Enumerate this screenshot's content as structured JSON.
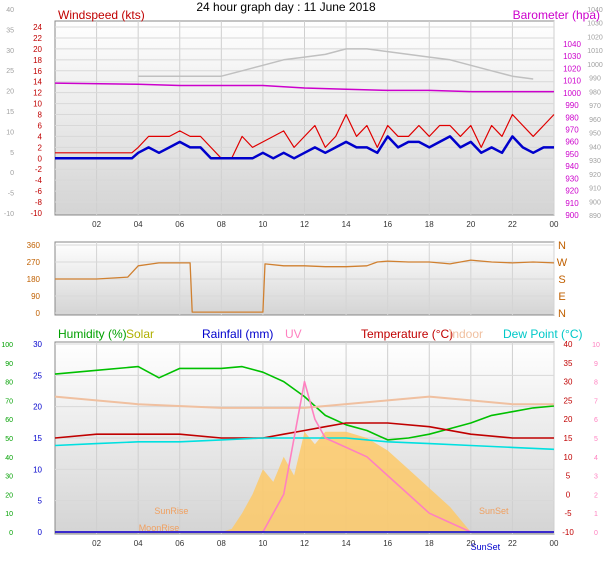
{
  "title": "24 hour graph day : 11 June 2018",
  "colors": {
    "wind": "#e00000",
    "windAvg": "#0000cc",
    "baro": "#cc00cc",
    "gust": "#c0c0c0",
    "dir": "#d08030",
    "humidity": "#00c000",
    "solar": "#c8c800",
    "rain": "#0000cc",
    "uv": "#ff80c0",
    "temp": "#c00000",
    "indoor": "#f0c0a0",
    "dew": "#00e0e0",
    "solarFill": "#ffc860"
  },
  "chart_data": [
    {
      "type": "line",
      "title": "",
      "legend": [
        "Windspeed (kts)",
        "Barometer (hpa)"
      ],
      "ylabel_left": "Windspeed (kts)",
      "ylabel_right": "Barometer (hpa)",
      "left_ticks": [
        "24",
        "22",
        "20",
        "18",
        "16",
        "14",
        "12",
        "10",
        "8",
        "6",
        "4",
        "2",
        "0",
        "-2",
        "-4",
        "-6",
        "-8",
        "-10"
      ],
      "left_faint_ticks": [
        "40",
        "35",
        "30",
        "25",
        "20",
        "15",
        "10",
        "5",
        "0",
        "-5",
        "-10"
      ],
      "right_ticks": [
        "1040",
        "1030",
        "1020",
        "1010",
        "1000",
        "990",
        "980",
        "970",
        "960",
        "950",
        "940",
        "930",
        "920",
        "910",
        "900"
      ],
      "right_faint_ticks": [
        "1040",
        "1030",
        "1020",
        "1010",
        "1000",
        "990",
        "980",
        "970",
        "960",
        "950",
        "940",
        "930",
        "920",
        "910",
        "900",
        "890"
      ],
      "x_ticks": [
        "02",
        "04",
        "06",
        "08",
        "10",
        "12",
        "14",
        "16",
        "18",
        "20",
        "22",
        "00"
      ],
      "series": [
        {
          "name": "Barometer (hpa)",
          "color_key": "baro",
          "axis": "right",
          "x": [
            0,
            4,
            6,
            8,
            10,
            12,
            14,
            16,
            18,
            20,
            22,
            24
          ],
          "y": [
            1008,
            1007,
            1006,
            1006,
            1006,
            1004,
            1003,
            1002,
            1002,
            1001,
            1001,
            1001
          ]
        },
        {
          "name": "Gust",
          "color_key": "gust",
          "axis": "left",
          "x": [
            4,
            6,
            8,
            9,
            10,
            11,
            12,
            13,
            14,
            15,
            16,
            17,
            18,
            19,
            20,
            21,
            22,
            23
          ],
          "y": [
            15,
            15,
            15,
            16,
            17,
            18,
            18.5,
            19,
            20,
            20,
            19.5,
            19,
            18.5,
            18,
            17,
            16,
            15,
            14.5
          ]
        },
        {
          "name": "Windspeed (kts)",
          "color_key": "wind",
          "axis": "left",
          "x": [
            0,
            3.7,
            4,
            4.5,
            5,
            5.5,
            6,
            6.5,
            7,
            7.5,
            8,
            8.5,
            9,
            9.5,
            10,
            10.5,
            11,
            11.5,
            12,
            12.5,
            13,
            13.5,
            14,
            14.5,
            15,
            15.5,
            16,
            16.5,
            17,
            17.5,
            18,
            18.5,
            19,
            19.5,
            20,
            20.5,
            21,
            21.5,
            22,
            22.5,
            23,
            23.5,
            24
          ],
          "y": [
            1,
            1,
            2,
            4,
            4,
            4,
            5,
            4,
            4,
            2,
            0,
            0,
            4,
            2,
            3,
            4,
            5,
            2,
            4,
            6,
            2,
            4,
            8,
            4,
            6,
            2,
            6,
            4,
            4,
            6,
            4,
            6,
            6,
            4,
            6,
            2,
            6,
            4,
            8,
            6,
            4,
            6,
            8
          ]
        },
        {
          "name": "Average",
          "color_key": "windAvg",
          "axis": "left",
          "x": [
            0,
            3.7,
            4,
            4.5,
            5,
            5.5,
            6,
            6.5,
            7,
            7.5,
            8,
            8.5,
            9,
            9.5,
            10,
            10.5,
            11,
            11.5,
            12,
            12.5,
            13,
            13.5,
            14,
            14.5,
            15,
            15.5,
            16,
            16.5,
            17,
            17.5,
            18,
            18.5,
            19,
            19.5,
            20,
            20.5,
            21,
            21.5,
            22,
            22.5,
            23,
            23.5,
            24
          ],
          "y": [
            0,
            0,
            1,
            2,
            1,
            2,
            3,
            2,
            2,
            0,
            0,
            0,
            0,
            0,
            1,
            0,
            1,
            0,
            1,
            2,
            1,
            2,
            3,
            2,
            2,
            1,
            4,
            2,
            3,
            3,
            2,
            3,
            4,
            2,
            3,
            1,
            2,
            1,
            4,
            2,
            1,
            2,
            2
          ]
        }
      ]
    },
    {
      "type": "scatter",
      "title": "",
      "y_ticks": [
        "360",
        "270",
        "180",
        "90",
        "0"
      ],
      "compass": [
        "N",
        "W",
        "S",
        "E",
        "N"
      ],
      "series": [
        {
          "name": "Direction",
          "color_key": "dir",
          "x": [
            0,
            2,
            3.5,
            4,
            5,
            6,
            6.5,
            6.6,
            8,
            10,
            10.1,
            11,
            12,
            13,
            14,
            15,
            15.5,
            16,
            17,
            18,
            19,
            20,
            21,
            22,
            23,
            24
          ],
          "y": [
            180,
            180,
            190,
            250,
            265,
            265,
            265,
            5,
            5,
            5,
            260,
            250,
            250,
            245,
            245,
            250,
            270,
            275,
            270,
            270,
            260,
            280,
            270,
            265,
            270,
            265
          ]
        }
      ]
    },
    {
      "type": "line",
      "title": "",
      "legend": [
        "Humidity (%)",
        "Solar",
        "Rainfall (mm)",
        "UV",
        "Temperature (°C)",
        "Indoor",
        "Dew Point (°C)"
      ],
      "left_ticks": [
        "30",
        "25",
        "20",
        "15",
        "10",
        "5",
        "0"
      ],
      "left_faint_ticks": [
        "100",
        "90",
        "80",
        "70",
        "60",
        "50",
        "40",
        "30",
        "20",
        "10",
        "0"
      ],
      "right_ticks": [
        "40",
        "35",
        "30",
        "25",
        "20",
        "15",
        "10",
        "5",
        "0",
        "-5",
        "-10"
      ],
      "uv_ticks": [
        "10",
        "9",
        "8",
        "7",
        "6",
        "5",
        "4",
        "3",
        "2",
        "1",
        "0"
      ],
      "x_ticks": [
        "02",
        "04",
        "06",
        "08",
        "10",
        "12",
        "14",
        "16",
        "18",
        "20",
        "22",
        "00"
      ],
      "annotations": [
        "SunRise",
        "SunSet",
        "MoonRise",
        "SunSet"
      ],
      "series": [
        {
          "name": "Humidity (%)",
          "color_key": "humidity",
          "axis": "hum",
          "x": [
            0,
            2,
            4,
            5,
            6,
            8,
            9,
            10,
            11,
            12,
            13,
            14,
            15,
            16,
            17,
            18,
            19,
            20,
            21,
            22,
            23,
            24
          ],
          "y": [
            84,
            86,
            88,
            82,
            87,
            87,
            88,
            85,
            80,
            72,
            62,
            57,
            54,
            49,
            50,
            52,
            55,
            58,
            62,
            64,
            66,
            67
          ]
        },
        {
          "name": "Indoor",
          "color_key": "indoor",
          "axis": "temp",
          "x": [
            0,
            4,
            8,
            12,
            16,
            18,
            20,
            22,
            24
          ],
          "y": [
            26,
            24,
            23,
            23,
            25,
            26,
            25,
            24,
            24
          ]
        },
        {
          "name": "Temperature (°C)",
          "color_key": "temp",
          "axis": "temp",
          "x": [
            0,
            2,
            4,
            6,
            8,
            10,
            11,
            12,
            13,
            14,
            15,
            16,
            18,
            20,
            22,
            24
          ],
          "y": [
            15,
            16,
            16,
            16,
            15,
            15,
            16,
            17,
            18,
            19,
            19,
            19,
            18,
            16,
            15,
            15
          ]
        },
        {
          "name": "Dew Point (°C)",
          "color_key": "dew",
          "axis": "temp",
          "x": [
            0,
            2,
            4,
            6,
            8,
            10,
            12,
            14,
            16,
            18,
            20,
            22,
            24
          ],
          "y": [
            13,
            13.5,
            14,
            14,
            14.5,
            15,
            15,
            15,
            14,
            13.5,
            13,
            12.5,
            12
          ]
        },
        {
          "name": "UV",
          "color_key": "uv",
          "axis": "uv",
          "x": [
            0,
            10,
            11,
            11.5,
            12,
            12.5,
            13,
            14,
            15,
            16,
            17,
            18,
            19,
            20,
            24
          ],
          "y": [
            0,
            0,
            2,
            5,
            8,
            6,
            5,
            4.5,
            4,
            3,
            2,
            1,
            0.5,
            0,
            0
          ]
        },
        {
          "name": "Solar",
          "color_key": "solarFill",
          "axis": "left",
          "x": [
            0,
            8,
            8.5,
            9,
            9.5,
            10,
            10.5,
            11,
            11.5,
            12,
            12.5,
            13,
            14,
            15,
            16,
            17,
            18,
            19,
            20,
            24
          ],
          "y": [
            0,
            0,
            0.5,
            3,
            6,
            10,
            8,
            12,
            9,
            16,
            14,
            16,
            16,
            15,
            13,
            10,
            7,
            4,
            0,
            0
          ]
        },
        {
          "name": "Rainfall (mm)",
          "color_key": "rain",
          "axis": "left",
          "x": [
            0,
            24
          ],
          "y": [
            0,
            0
          ]
        }
      ]
    }
  ]
}
